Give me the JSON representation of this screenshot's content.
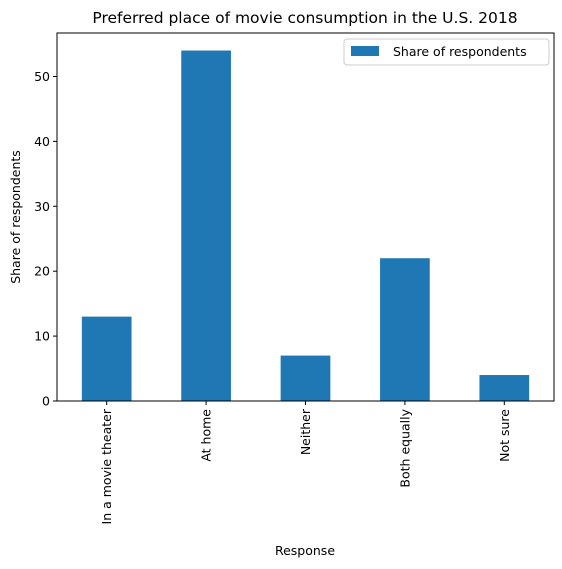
{
  "chart_data": {
    "type": "bar",
    "title": "Preferred place of movie consumption in the U.S. 2018",
    "xlabel": "Response",
    "ylabel": "Share of respondents",
    "categories": [
      "In a movie theater",
      "At home",
      "Neither",
      "Both equally",
      "Not sure"
    ],
    "series": [
      {
        "name": "Share of respondents",
        "values": [
          13,
          54,
          7,
          22,
          4
        ],
        "color": "#1f77b4"
      }
    ],
    "ylim": [
      0,
      56.7
    ],
    "yticks": [
      0,
      10,
      20,
      30,
      40,
      50
    ],
    "grid": false,
    "legend": "top-right"
  }
}
